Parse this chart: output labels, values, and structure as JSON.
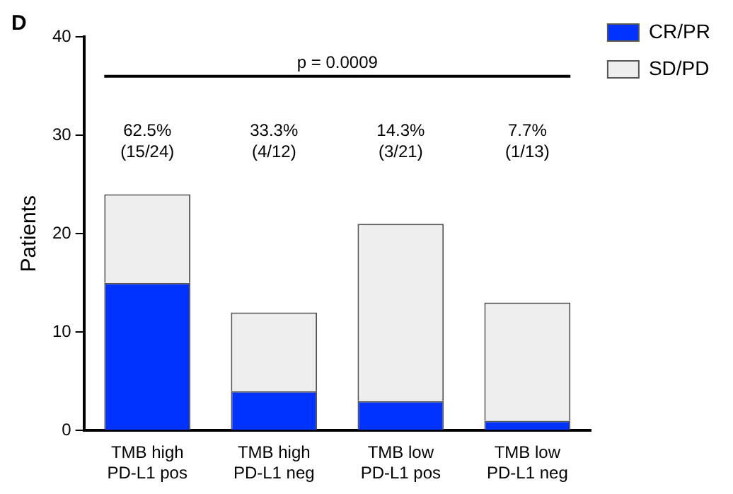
{
  "chart_data": {
    "type": "bar",
    "title": "D",
    "ylabel": "Patients",
    "stacked": true,
    "categories": [
      "TMB high\nPD-L1 pos",
      "TMB high\nPD-L1 neg",
      "TMB low\nPD-L1 pos",
      "TMB low\nPD-L1 neg"
    ],
    "series": [
      {
        "name": "CR/PR",
        "color": "#0033ff",
        "values": [
          15,
          4,
          3,
          1
        ]
      },
      {
        "name": "SD/PD",
        "color": "#eeeeee",
        "values": [
          9,
          8,
          18,
          12
        ]
      }
    ],
    "ylim": [
      0,
      40
    ],
    "yticks": [
      0,
      10,
      20,
      30,
      40
    ],
    "grid": false,
    "legend": "top right",
    "ref_lines": [
      {
        "axis": "y",
        "value": 36,
        "color": "#000000"
      }
    ],
    "annotations": [
      "p = 0.0009",
      "62.5%\n(15/24)",
      "33.3%\n(4/12)",
      "14.3%\n(3/21)",
      "7.7%\n(1/13)"
    ]
  }
}
